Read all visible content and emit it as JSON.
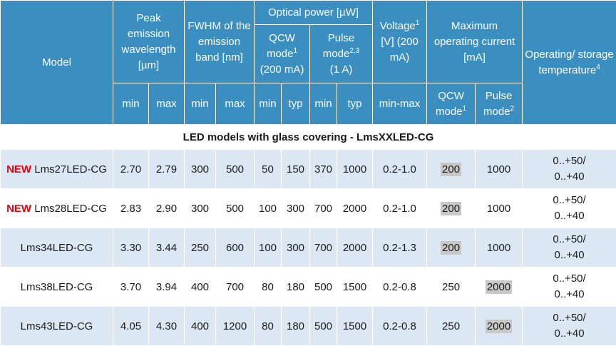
{
  "header": {
    "model": "Model",
    "peak": "Peak emission wavelength [µm]",
    "fwhm": "FWHM of the emission band [nm]",
    "optical": "Optical power [µW]",
    "qcw_mode": "QCW mode",
    "qcw_mode_sup": "1",
    "qcw_mode_sub": "(200 mA)",
    "pulse_mode": "Pulse mode",
    "pulse_mode_sup": "2,3",
    "pulse_mode_sub": "(1 A)",
    "voltage": "Voltage",
    "voltage_sup": "1",
    "voltage_sub": "[V] (200 mA)",
    "max_current": "Maximum operating current [mA]",
    "operating": "Operating/ storage temperature",
    "operating_sup": "4",
    "min": "min",
    "max": "max",
    "typ": "typ",
    "min_max": "min-max",
    "qcw_sub": "QCW mode",
    "qcw_sub_sup": "1",
    "pulse_sub": "Pulse mode",
    "pulse_sub_sup": "2"
  },
  "section_title": "LED models with glass covering - LmsXXLED-CG",
  "new_label": "NEW",
  "rows": [
    {
      "new": true,
      "model": "Lms27LED-CG",
      "peak_min": "2.70",
      "peak_max": "2.79",
      "fwhm_min": "300",
      "fwhm_max": "500",
      "qcw_min": "50",
      "qcw_typ": "150",
      "pulse_min": "370",
      "pulse_typ": "1000",
      "voltage": "0.2-1.0",
      "cur_qcw": "200",
      "cur_pulse": "1000",
      "temp1": "0..+50/",
      "temp2": "0..+40"
    },
    {
      "new": true,
      "model": "Lms28LED-CG",
      "peak_min": "2.83",
      "peak_max": "2.90",
      "fwhm_min": "300",
      "fwhm_max": "500",
      "qcw_min": "100",
      "qcw_typ": "300",
      "pulse_min": "700",
      "pulse_typ": "2000",
      "voltage": "0.2-1.0",
      "cur_qcw": "200",
      "cur_pulse": "1000",
      "temp1": "0..+50/",
      "temp2": "0..+40"
    },
    {
      "new": false,
      "model": "Lms34LED-CG",
      "peak_min": "3.30",
      "peak_max": "3.44",
      "fwhm_min": "250",
      "fwhm_max": "600",
      "qcw_min": "100",
      "qcw_typ": "300",
      "pulse_min": "700",
      "pulse_typ": "2000",
      "voltage": "0.2-1.3",
      "cur_qcw": "200",
      "cur_pulse": "1000",
      "temp1": "0..+50/",
      "temp2": "0..+40"
    },
    {
      "new": false,
      "model": "Lms38LED-CG",
      "peak_min": "3.70",
      "peak_max": "3.94",
      "fwhm_min": "400",
      "fwhm_max": "700",
      "qcw_min": "80",
      "qcw_typ": "180",
      "pulse_min": "500",
      "pulse_typ": "1500",
      "voltage": "0.2-0.8",
      "cur_qcw": "250",
      "cur_pulse": "2000",
      "temp1": "0..+50/",
      "temp2": "0..+40"
    },
    {
      "new": false,
      "model": "Lms43LED-CG",
      "peak_min": "4.05",
      "peak_max": "4.30",
      "fwhm_min": "400",
      "fwhm_max": "1200",
      "qcw_min": "80",
      "qcw_typ": "180",
      "pulse_min": "500",
      "pulse_typ": "1500",
      "voltage": "0.2-0.8",
      "cur_qcw": "250",
      "cur_pulse": "2000",
      "temp1": "0..+50/",
      "temp2": "0..+40"
    }
  ],
  "highlight": {
    "cur_qcw": [
      true,
      true,
      true,
      false,
      false
    ],
    "cur_pulse": [
      false,
      false,
      false,
      true,
      true
    ]
  },
  "colors": {
    "header_bg": "#3a8ec0",
    "row_shaded": "#dbe8f4",
    "new_label": "#e8000d",
    "cell_highlight": "#c8c8c8"
  }
}
